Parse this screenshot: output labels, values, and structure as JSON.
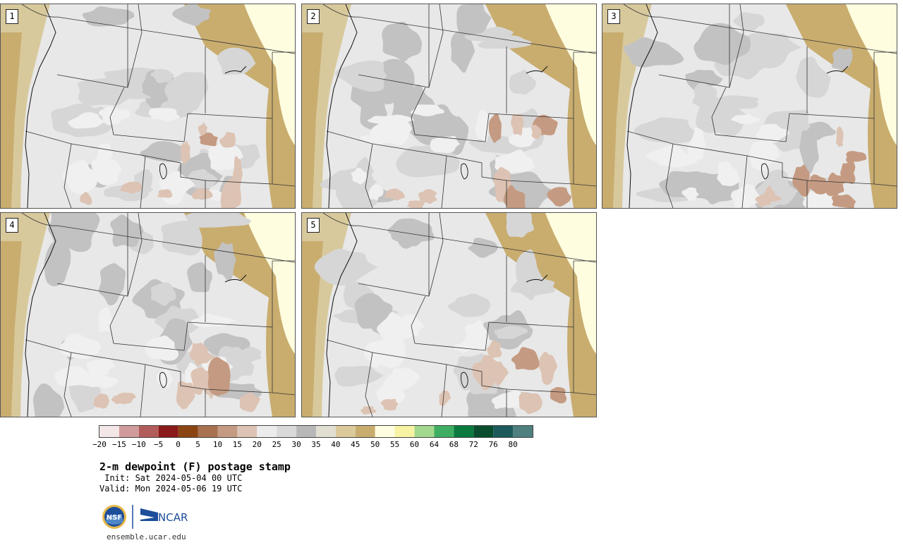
{
  "figure": {
    "title": "2-m dewpoint (F) postage stamp",
    "init": " Init: Sat 2024-05-04 00 UTC",
    "valid": "Valid: Mon 2024-05-06 19 UTC",
    "website": "ensemble.ucar.edu"
  },
  "panels": [
    {
      "label": "1"
    },
    {
      "label": "2"
    },
    {
      "label": "3"
    },
    {
      "label": "4"
    },
    {
      "label": "5"
    }
  ],
  "colorbar": {
    "tick_labels": [
      "−20",
      "−15",
      "−10",
      "−5",
      "0",
      "5",
      "10",
      "15",
      "20",
      "25",
      "30",
      "35",
      "40",
      "45",
      "50",
      "55",
      "60",
      "64",
      "68",
      "72",
      "76",
      "80"
    ],
    "colors": [
      "#f2e6e6",
      "#d19b9b",
      "#b35c5c",
      "#8b1a1a",
      "#8b4513",
      "#a8714f",
      "#c49b82",
      "#ddc3b3",
      "#ececec",
      "#d9d9d9",
      "#b8b8b8",
      "#e0dfd2",
      "#dcc99a",
      "#c9ad6f",
      "#fffde0",
      "#f7f3a3",
      "#a3d98f",
      "#3fae62",
      "#0b7a3e",
      "#0a4d2e",
      "#1c5a5c",
      "#4f7f7f"
    ]
  },
  "logos": {
    "nsf_text": "NSF",
    "ncar_text": "NCAR"
  }
}
